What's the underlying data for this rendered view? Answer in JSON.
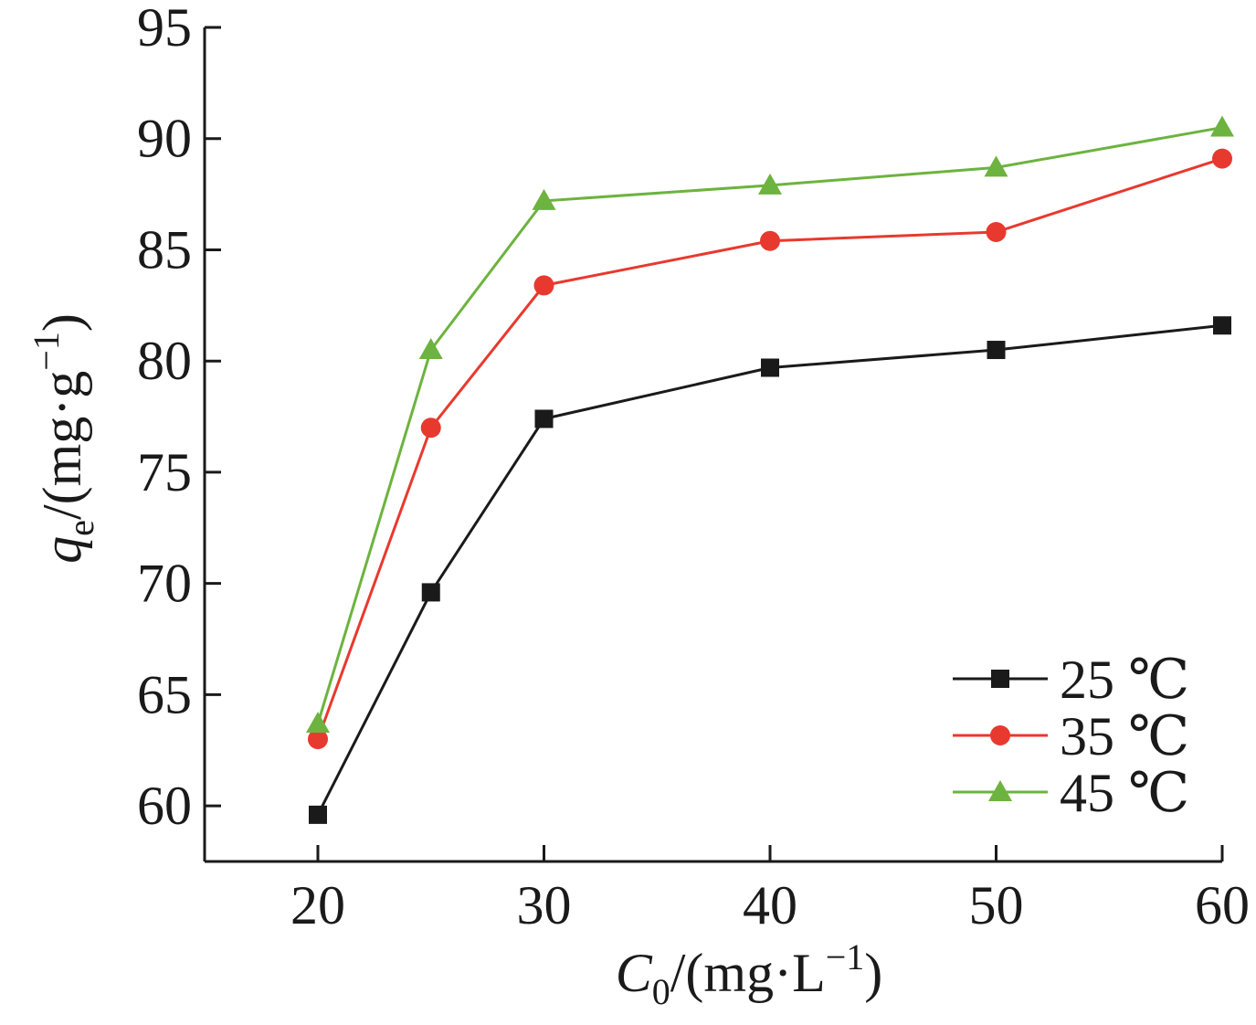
{
  "chart_data": {
    "type": "line",
    "x": [
      20,
      25,
      30,
      40,
      50,
      60
    ],
    "xlim": [
      15,
      60
    ],
    "ylim": [
      57.5,
      95
    ],
    "xticks": [
      20,
      30,
      40,
      50,
      60
    ],
    "yticks": [
      60,
      65,
      70,
      75,
      80,
      85,
      90,
      95
    ],
    "grid": false,
    "legend_position": "bottom-right",
    "xlabel": {
      "main": "C",
      "sub": "0",
      "unit": "/(mg·L",
      "sup": "−1",
      "close": ")"
    },
    "ylabel": {
      "main": "q",
      "sub": "e",
      "unit": "/(mg·g",
      "sup": "−1",
      "close": ")"
    },
    "series": [
      {
        "name": "25 ℃",
        "color": "#1a1a1a",
        "marker": "square",
        "values": [
          59.6,
          69.6,
          77.4,
          79.7,
          80.5,
          81.6
        ]
      },
      {
        "name": "35 ℃",
        "color": "#e8392f",
        "marker": "circle",
        "values": [
          63.0,
          77.0,
          83.4,
          85.4,
          85.8,
          89.1
        ]
      },
      {
        "name": "45 ℃",
        "color": "#6db33f",
        "marker": "triangle",
        "values": [
          63.7,
          80.5,
          87.2,
          87.9,
          88.7,
          90.5
        ]
      }
    ]
  }
}
